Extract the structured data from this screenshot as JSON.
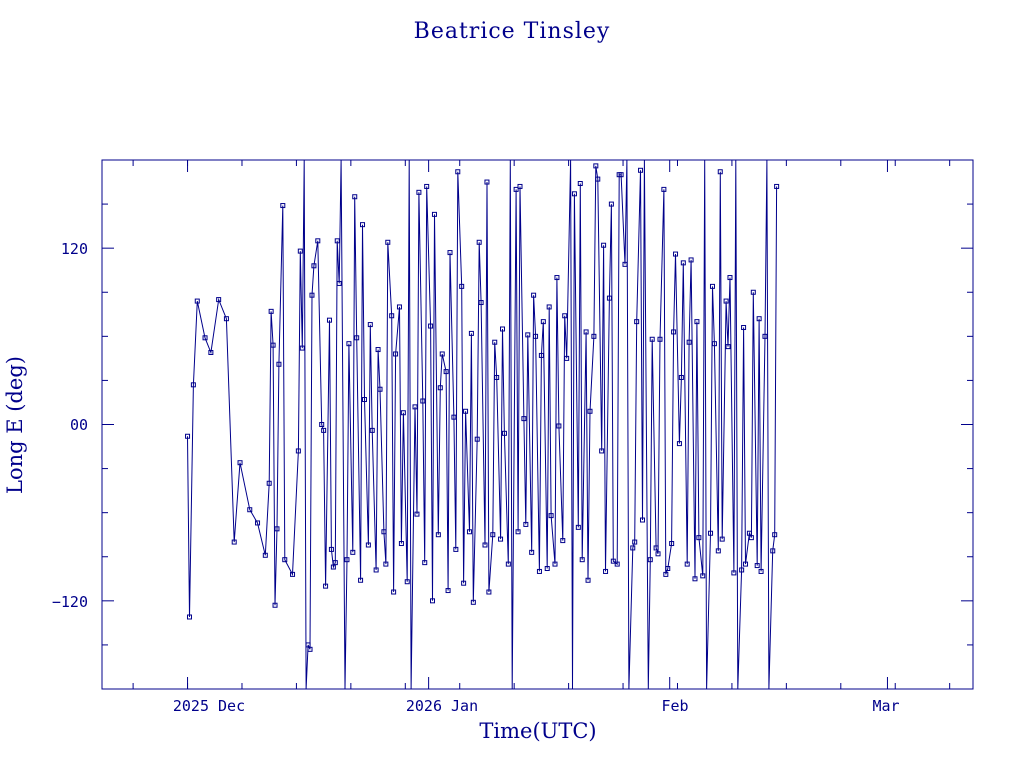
{
  "chart_data": {
    "type": "line",
    "title": "Beatrice Tinsley",
    "xlabel": "Time(UTC)",
    "ylabel": "Long E (deg)",
    "x_ticks": [
      "2025 Dec",
      "2026 Jan",
      "Feb",
      "Mar"
    ],
    "y_ticks": [
      "120",
      "00",
      "−120"
    ],
    "y_tick_values": [
      120,
      0,
      -120
    ],
    "ylim": [
      -180,
      180
    ],
    "xlim": [
      "2025-11-20",
      "2026-03-12"
    ],
    "markers": "square",
    "grid": false,
    "color": "#00008b",
    "series": [
      {
        "points": [
          [
            "2025-12-01T00:00",
            -8
          ],
          [
            "2025-12-01T06:00",
            -131
          ],
          [
            "2025-12-01T18:00",
            27
          ],
          [
            "2025-12-02T06:00",
            84
          ],
          [
            "2025-12-03T06:00",
            59
          ],
          [
            "2025-12-04T00:00",
            49
          ],
          [
            "2025-12-05T00:00",
            85
          ],
          [
            "2025-12-06T00:00",
            72
          ],
          [
            "2025-12-07T00:00",
            -80
          ],
          [
            "2025-12-07T18:00",
            -26
          ],
          [
            "2025-12-09T00:00",
            -58
          ],
          [
            "2025-12-10T00:00",
            -67
          ],
          [
            "2025-12-11T00:00",
            -89
          ],
          [
            "2025-12-11T12:00",
            -40
          ],
          [
            "2025-12-11T18:00",
            77
          ],
          [
            "2025-12-12T00:00",
            54
          ],
          [
            "2025-12-12T06:00",
            -123
          ],
          [
            "2025-12-12T12:00",
            -71
          ],
          [
            "2025-12-12T18:00",
            41
          ],
          [
            "2025-12-13T06:00",
            149
          ],
          [
            "2025-12-13T12:00",
            -92
          ],
          [
            "2025-12-14T12:00",
            -102
          ],
          [
            "2025-12-15T06:00",
            -18
          ],
          [
            "2025-12-15T12:00",
            118
          ],
          [
            "2025-12-15T18:00",
            52
          ],
          [
            "2025-12-16T00:00",
            180
          ],
          [
            "2025-12-16T06:00",
            -180
          ],
          [
            "2025-12-16T12:00",
            -150
          ],
          [
            "2025-12-16T18:00",
            -153
          ],
          [
            "2025-12-17T00:00",
            88
          ],
          [
            "2025-12-17T06:00",
            108
          ],
          [
            "2025-12-17T18:00",
            125
          ],
          [
            "2025-12-18T06:00",
            0
          ],
          [
            "2025-12-18T12:00",
            -4
          ],
          [
            "2025-12-18T18:00",
            -110
          ],
          [
            "2025-12-19T06:00",
            71
          ],
          [
            "2025-12-19T12:00",
            -85
          ],
          [
            "2025-12-19T18:00",
            -97
          ],
          [
            "2025-12-20T00:00",
            -94
          ],
          [
            "2025-12-20T06:00",
            125
          ],
          [
            "2025-12-20T12:00",
            96
          ],
          [
            "2025-12-20T18:00",
            180
          ],
          [
            "2025-12-21T06:00",
            -180
          ],
          [
            "2025-12-21T12:00",
            -92
          ],
          [
            "2025-12-21T18:00",
            55
          ],
          [
            "2025-12-22T06:00",
            -87
          ],
          [
            "2025-12-22T12:00",
            155
          ],
          [
            "2025-12-22T18:00",
            59
          ],
          [
            "2025-12-23T06:00",
            -106
          ],
          [
            "2025-12-23T12:00",
            136
          ],
          [
            "2025-12-23T18:00",
            17
          ],
          [
            "2025-12-24T06:00",
            -82
          ],
          [
            "2025-12-24T12:00",
            68
          ],
          [
            "2025-12-24T18:00",
            -4
          ],
          [
            "2025-12-25T06:00",
            -99
          ],
          [
            "2025-12-25T12:00",
            51
          ],
          [
            "2025-12-25T18:00",
            24
          ],
          [
            "2025-12-26T06:00",
            -73
          ],
          [
            "2025-12-26T12:00",
            -95
          ],
          [
            "2025-12-26T18:00",
            124
          ],
          [
            "2025-12-27T06:00",
            74
          ],
          [
            "2025-12-27T12:00",
            -114
          ],
          [
            "2025-12-27T18:00",
            48
          ],
          [
            "2025-12-28T06:00",
            80
          ],
          [
            "2025-12-28T12:00",
            -81
          ],
          [
            "2025-12-28T18:00",
            8
          ],
          [
            "2025-12-29T06:00",
            -107
          ],
          [
            "2025-12-29T12:00",
            180
          ],
          [
            "2025-12-29T18:00",
            -180
          ],
          [
            "2025-12-30T06:00",
            12
          ],
          [
            "2025-12-30T12:00",
            -61
          ],
          [
            "2025-12-30T18:00",
            158
          ],
          [
            "2025-12-31T06:00",
            16
          ],
          [
            "2025-12-31T12:00",
            -94
          ],
          [
            "2025-12-31T18:00",
            162
          ],
          [
            "2026-01-01T06:00",
            67
          ],
          [
            "2026-01-01T12:00",
            -120
          ],
          [
            "2026-01-01T18:00",
            143
          ],
          [
            "2026-01-02T06:00",
            -75
          ],
          [
            "2026-01-02T12:00",
            25
          ],
          [
            "2026-01-02T18:00",
            48
          ],
          [
            "2026-01-03T06:00",
            36
          ],
          [
            "2026-01-03T12:00",
            -113
          ],
          [
            "2026-01-03T18:00",
            117
          ],
          [
            "2026-01-04T06:00",
            5
          ],
          [
            "2026-01-04T12:00",
            -85
          ],
          [
            "2026-01-04T18:00",
            172
          ],
          [
            "2026-01-05T06:00",
            94
          ],
          [
            "2026-01-05T12:00",
            -108
          ],
          [
            "2026-01-05T18:00",
            9
          ],
          [
            "2026-01-06T06:00",
            -73
          ],
          [
            "2026-01-06T12:00",
            62
          ],
          [
            "2026-01-06T18:00",
            -121
          ],
          [
            "2026-01-07T06:00",
            -10
          ],
          [
            "2026-01-07T12:00",
            124
          ],
          [
            "2026-01-07T18:00",
            83
          ],
          [
            "2026-01-08T06:00",
            -82
          ],
          [
            "2026-01-08T12:00",
            165
          ],
          [
            "2026-01-08T18:00",
            -114
          ],
          [
            "2026-01-09T06:00",
            -75
          ],
          [
            "2026-01-09T12:00",
            56
          ],
          [
            "2026-01-09T18:00",
            32
          ],
          [
            "2026-01-10T06:00",
            -78
          ],
          [
            "2026-01-10T12:00",
            65
          ],
          [
            "2026-01-10T18:00",
            -6
          ],
          [
            "2026-01-11T06:00",
            -95
          ],
          [
            "2026-01-11T12:00",
            180
          ],
          [
            "2026-01-11T18:00",
            -180
          ],
          [
            "2026-01-12T06:00",
            160
          ],
          [
            "2026-01-12T12:00",
            -73
          ],
          [
            "2026-01-12T18:00",
            162
          ],
          [
            "2026-01-13T06:00",
            4
          ],
          [
            "2026-01-13T12:00",
            -68
          ],
          [
            "2026-01-13T18:00",
            61
          ],
          [
            "2026-01-14T06:00",
            -87
          ],
          [
            "2026-01-14T12:00",
            88
          ],
          [
            "2026-01-14T18:00",
            60
          ],
          [
            "2026-01-15T06:00",
            -100
          ],
          [
            "2026-01-15T12:00",
            47
          ],
          [
            "2026-01-15T18:00",
            70
          ],
          [
            "2026-01-16T06:00",
            -98
          ],
          [
            "2026-01-16T12:00",
            80
          ],
          [
            "2026-01-16T18:00",
            -62
          ],
          [
            "2026-01-17T06:00",
            -95
          ],
          [
            "2026-01-17T12:00",
            100
          ],
          [
            "2026-01-17T18:00",
            -1
          ],
          [
            "2026-01-18T06:00",
            -79
          ],
          [
            "2026-01-18T12:00",
            74
          ],
          [
            "2026-01-18T18:00",
            45
          ],
          [
            "2026-01-19T06:00",
            180
          ],
          [
            "2026-01-19T12:00",
            -180
          ],
          [
            "2026-01-19T18:00",
            157
          ],
          [
            "2026-01-20T06:00",
            -70
          ],
          [
            "2026-01-20T12:00",
            164
          ],
          [
            "2026-01-20T18:00",
            -92
          ],
          [
            "2026-01-21T06:00",
            63
          ],
          [
            "2026-01-21T12:00",
            -106
          ],
          [
            "2026-01-21T18:00",
            9
          ],
          [
            "2026-01-22T06:00",
            60
          ],
          [
            "2026-01-22T12:00",
            176
          ],
          [
            "2026-01-22T18:00",
            167
          ],
          [
            "2026-01-23T06:00",
            -18
          ],
          [
            "2026-01-23T12:00",
            122
          ],
          [
            "2026-01-23T18:00",
            -100
          ],
          [
            "2026-01-24T06:00",
            86
          ],
          [
            "2026-01-24T12:00",
            150
          ],
          [
            "2026-01-24T18:00",
            -93
          ],
          [
            "2026-01-25T06:00",
            -95
          ],
          [
            "2026-01-25T12:00",
            170
          ],
          [
            "2026-01-25T18:00",
            170
          ],
          [
            "2026-01-26T06:00",
            109
          ],
          [
            "2026-01-26T12:00",
            180
          ],
          [
            "2026-01-26T18:00",
            -180
          ],
          [
            "2026-01-27T06:00",
            -84
          ],
          [
            "2026-01-27T12:00",
            -80
          ],
          [
            "2026-01-27T18:00",
            70
          ],
          [
            "2026-01-28T06:00",
            173
          ],
          [
            "2026-01-28T12:00",
            -65
          ],
          [
            "2026-01-28T18:00",
            180
          ],
          [
            "2026-01-29T06:00",
            -180
          ],
          [
            "2026-01-29T12:00",
            -92
          ],
          [
            "2026-01-29T18:00",
            58
          ],
          [
            "2026-01-30T06:00",
            -84
          ],
          [
            "2026-01-30T12:00",
            -88
          ],
          [
            "2026-01-30T18:00",
            58
          ],
          [
            "2026-01-31T06:00",
            160
          ],
          [
            "2026-01-31T12:00",
            -102
          ],
          [
            "2026-01-31T18:00",
            -98
          ],
          [
            "2026-02-01T06:00",
            -81
          ],
          [
            "2026-02-01T12:00",
            63
          ],
          [
            "2026-02-01T18:00",
            116
          ],
          [
            "2026-02-02T06:00",
            -13
          ],
          [
            "2026-02-02T12:00",
            32
          ],
          [
            "2026-02-02T18:00",
            110
          ],
          [
            "2026-02-03T06:00",
            -95
          ],
          [
            "2026-02-03T12:00",
            56
          ],
          [
            "2026-02-03T18:00",
            112
          ],
          [
            "2026-02-04T06:00",
            -105
          ],
          [
            "2026-02-04T12:00",
            70
          ],
          [
            "2026-02-04T18:00",
            -77
          ],
          [
            "2026-02-05T06:00",
            -103
          ],
          [
            "2026-02-05T12:00",
            180
          ],
          [
            "2026-02-05T18:00",
            -180
          ],
          [
            "2026-02-06T06:00",
            -74
          ],
          [
            "2026-02-06T12:00",
            94
          ],
          [
            "2026-02-06T18:00",
            55
          ],
          [
            "2026-02-07T06:00",
            -86
          ],
          [
            "2026-02-07T12:00",
            172
          ],
          [
            "2026-02-07T18:00",
            -78
          ],
          [
            "2026-02-08T06:00",
            84
          ],
          [
            "2026-02-08T12:00",
            53
          ],
          [
            "2026-02-08T18:00",
            100
          ],
          [
            "2026-02-09T06:00",
            -101
          ],
          [
            "2026-02-09T12:00",
            180
          ],
          [
            "2026-02-09T18:00",
            -180
          ],
          [
            "2026-02-10T06:00",
            -99
          ],
          [
            "2026-02-10T12:00",
            66
          ],
          [
            "2026-02-10T18:00",
            -95
          ],
          [
            "2026-02-11T06:00",
            -74
          ],
          [
            "2026-02-11T12:00",
            -77
          ],
          [
            "2026-02-11T18:00",
            90
          ],
          [
            "2026-02-12T06:00",
            -96
          ],
          [
            "2026-02-12T12:00",
            72
          ],
          [
            "2026-02-12T18:00",
            -100
          ],
          [
            "2026-02-13T06:00",
            60
          ],
          [
            "2026-02-13T12:00",
            180
          ],
          [
            "2026-02-13T18:00",
            -180
          ],
          [
            "2026-02-14T06:00",
            -86
          ],
          [
            "2026-02-14T12:00",
            -75
          ],
          [
            "2026-02-14T18:00",
            162
          ]
        ]
      }
    ]
  }
}
